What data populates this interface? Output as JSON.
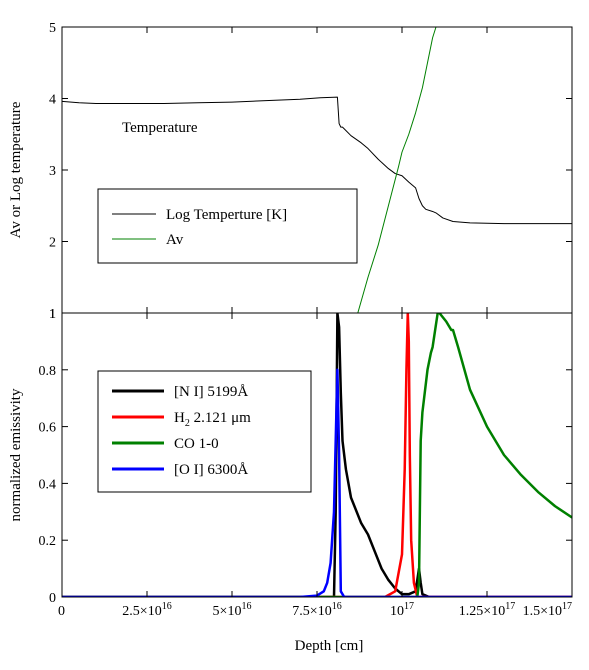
{
  "chart_data": [
    {
      "type": "line",
      "panel": "top",
      "xlabel": "",
      "ylabel": "Av or Log temperature",
      "xlim": [
        0,
        1.5e+17
      ],
      "ylim": [
        1,
        5
      ],
      "y_ticks": [
        1,
        2,
        3,
        4,
        5
      ],
      "y_tick_labels": [
        "1",
        "2",
        "3",
        "4",
        "5"
      ],
      "annotation": "Temperature",
      "legend_position": "center-left",
      "series": [
        {
          "name": "Log Temperture [K]",
          "color": "#000000",
          "x": [
            0,
            5000000000000000.0,
            1e+16,
            2e+16,
            3e+16,
            4e+16,
            5e+16,
            6e+16,
            7e+16,
            7.6e+16,
            8.1e+16,
            8.15e+16,
            8.2e+16,
            8.25e+16,
            8.5e+16,
            8.8e+16,
            9e+16,
            9.3e+16,
            9.6e+16,
            9.8e+16,
            1e+17,
            1.02e+17,
            1.04e+17,
            1.05e+17,
            1.06e+17,
            1.07e+17,
            1.09e+17,
            1.1e+17,
            1.12e+17,
            1.15e+17,
            1.2e+17,
            1.3e+17,
            1.4e+17,
            1.5e+17
          ],
          "y": [
            3.96,
            3.94,
            3.93,
            3.93,
            3.93,
            3.94,
            3.95,
            3.97,
            3.99,
            4.01,
            4.02,
            3.65,
            3.6,
            3.6,
            3.48,
            3.38,
            3.3,
            3.15,
            3.02,
            2.95,
            2.92,
            2.83,
            2.75,
            2.6,
            2.5,
            2.45,
            2.42,
            2.4,
            2.33,
            2.28,
            2.26,
            2.25,
            2.25,
            2.25
          ]
        },
        {
          "name": "Av",
          "color": "#008000",
          "x": [
            8.7e+16,
            9e+16,
            9.3e+16,
            9.6e+16,
            9.9e+16,
            1e+17,
            1.02e+17,
            1.04e+17,
            1.06e+17,
            1.075e+17,
            1.09e+17,
            1.1e+17
          ],
          "y": [
            1.0,
            1.5,
            1.95,
            2.5,
            3.05,
            3.25,
            3.5,
            3.8,
            4.15,
            4.5,
            4.85,
            5.0
          ]
        }
      ]
    },
    {
      "type": "line",
      "panel": "bottom",
      "xlabel": "Depth [cm]",
      "ylabel": "normalized emissivity",
      "xlim": [
        0,
        1.5e+17
      ],
      "ylim": [
        0,
        1
      ],
      "x_ticks": [
        0,
        2.5e+16,
        5e+16,
        7.5e+16,
        1e+17,
        1.25e+17,
        1.5e+17
      ],
      "x_tick_labels": [
        {
          "base": "0"
        },
        {
          "base": "2.5×10",
          "exp": "16"
        },
        {
          "base": "5×10",
          "exp": "16"
        },
        {
          "base": "7.5×10",
          "exp": "16"
        },
        {
          "base": "10",
          "exp": "17"
        },
        {
          "base": "1.25×10",
          "exp": "17"
        },
        {
          "base": "1.5×10",
          "exp": "17"
        }
      ],
      "y_ticks": [
        0,
        0.2,
        0.4,
        0.6,
        0.8,
        1
      ],
      "y_tick_labels": [
        "0",
        "0.2",
        "0.4",
        "0.6",
        "0.8",
        "1"
      ],
      "legend_position": "left",
      "series": [
        {
          "name": "[N I] 5199Å",
          "legend_parts": [
            "[N I] 5199Å"
          ],
          "color": "#000000",
          "x": [
            0,
            7.9e+16,
            8e+16,
            8.05e+16,
            8.1e+16,
            8.15e+16,
            8.2e+16,
            8.25e+16,
            8.35e+16,
            8.5e+16,
            8.8e+16,
            9e+16,
            9.2e+16,
            9.4e+16,
            9.6e+16,
            9.8e+16,
            1e+17,
            1.02e+17,
            1.04e+17,
            1.045e+17,
            1.05e+17,
            1.055e+17,
            1.06e+17,
            1.08e+17,
            1.5e+17
          ],
          "y": [
            0,
            0.0,
            0.0,
            0.3,
            1.0,
            0.95,
            0.72,
            0.55,
            0.45,
            0.35,
            0.26,
            0.22,
            0.16,
            0.1,
            0.06,
            0.03,
            0.01,
            0.01,
            0.02,
            0.06,
            0.1,
            0.05,
            0.01,
            0.0,
            0
          ]
        },
        {
          "name": "H2 2.121 μm",
          "legend_parts": [
            "H",
            "2",
            " 2.121 μm"
          ],
          "color": "#ff0000",
          "x": [
            0,
            9.5e+16,
            9.8e+16,
            1e+17,
            1.008e+17,
            1.013e+17,
            1.017e+17,
            1.02e+17,
            1.023e+17,
            1.027e+17,
            1.035e+17,
            1.045e+17,
            1.5e+17
          ],
          "y": [
            0,
            0.0,
            0.02,
            0.15,
            0.45,
            0.8,
            1.0,
            0.9,
            0.5,
            0.2,
            0.05,
            0.0,
            0
          ]
        },
        {
          "name": "CO 1-0",
          "legend_parts": [
            "CO 1-0"
          ],
          "color": "#008000",
          "x": [
            0,
            1.03e+17,
            1.045e+17,
            1.05e+17,
            1.055e+17,
            1.06e+17,
            1.075e+17,
            1.085e+17,
            1.09e+17,
            1.095e+17,
            1.1e+17,
            1.105e+17,
            1.11e+17,
            1.13e+17,
            1.145e+17,
            1.15e+17,
            1.165e+17,
            1.2e+17,
            1.25e+17,
            1.3e+17,
            1.35e+17,
            1.4e+17,
            1.45e+17,
            1.5e+17
          ],
          "y": [
            0,
            0.0,
            0.0,
            0.05,
            0.55,
            0.65,
            0.8,
            0.86,
            0.88,
            0.92,
            0.96,
            1.0,
            1.0,
            0.97,
            0.94,
            0.94,
            0.88,
            0.73,
            0.6,
            0.5,
            0.43,
            0.37,
            0.32,
            0.28
          ]
        },
        {
          "name": "[O I] 6300Å",
          "legend_parts": [
            "[O I] 6300Å"
          ],
          "color": "#0000ff",
          "x": [
            0,
            7e+16,
            7.5e+16,
            7.7e+16,
            7.8e+16,
            7.9e+16,
            8e+16,
            8.1e+16,
            8.15e+16,
            8.2e+16,
            8.3e+16,
            1.5e+17
          ],
          "y": [
            0,
            0.0,
            0.005,
            0.02,
            0.05,
            0.12,
            0.3,
            0.8,
            0.5,
            0.02,
            0.0,
            0
          ]
        }
      ]
    }
  ]
}
